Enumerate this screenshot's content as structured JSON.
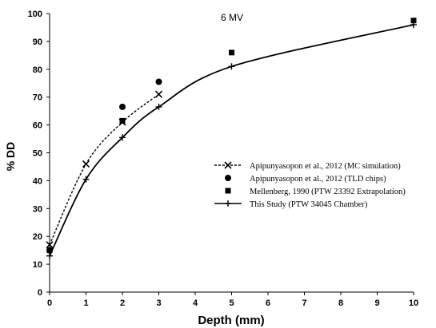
{
  "chart_data": {
    "type": "line",
    "title": "",
    "annotation": "6 MV",
    "xlabel": "Depth (mm)",
    "ylabel": "% DD",
    "xlim": [
      0,
      10
    ],
    "ylim": [
      0,
      100
    ],
    "x_ticks": [
      "0",
      "1",
      "2",
      "3",
      "4",
      "5",
      "6",
      "7",
      "8",
      "9",
      "10"
    ],
    "y_ticks": [
      "0",
      "10",
      "20",
      "30",
      "40",
      "50",
      "60",
      "70",
      "80",
      "90",
      "100"
    ],
    "grid": false,
    "legend_position": "center-right",
    "series": [
      {
        "name": "Apipunyasopon et al., 2012 (MC simulation)",
        "style": "dashed-line-x-marker",
        "color": "#000000",
        "x": [
          0,
          1,
          2,
          3
        ],
        "y": [
          17,
          46,
          61,
          71
        ]
      },
      {
        "name": "Apipunyasopon et al., 2012 (TLD chips)",
        "style": "circle-marker",
        "color": "#000000",
        "x": [
          0,
          2,
          3
        ],
        "y": [
          15,
          66.5,
          75.5
        ]
      },
      {
        "name": "Mellenberg, 1990 (PTW 23392 Extrapolation)",
        "style": "square-marker",
        "color": "#000000",
        "x": [
          0,
          2,
          5,
          10
        ],
        "y": [
          15,
          61.5,
          86,
          97.5
        ]
      },
      {
        "name": "This Study (PTW 34045 Chamber)",
        "style": "solid-line-plus-marker",
        "color": "#000000",
        "x": [
          0,
          1,
          2,
          3,
          5,
          10
        ],
        "y": [
          13,
          40.5,
          55.5,
          66.5,
          81,
          96
        ]
      }
    ]
  }
}
